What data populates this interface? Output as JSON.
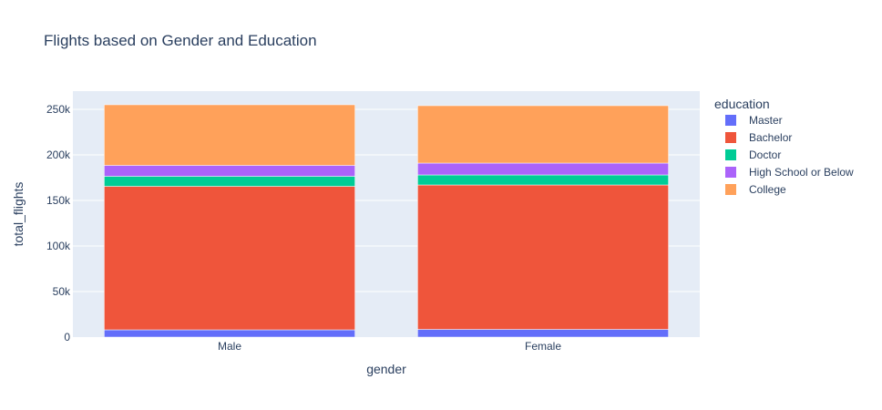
{
  "chart_data": {
    "type": "bar",
    "barmode": "stack",
    "title": "Flights based on Gender and Education",
    "xlabel": "gender",
    "ylabel": "total_flights",
    "categories": [
      "Male",
      "Female"
    ],
    "ylim": [
      0,
      270000
    ],
    "yticks": [
      {
        "value": 0,
        "label": "0"
      },
      {
        "value": 50000,
        "label": "50k"
      },
      {
        "value": 100000,
        "label": "100k"
      },
      {
        "value": 150000,
        "label": "150k"
      },
      {
        "value": 200000,
        "label": "200k"
      },
      {
        "value": 250000,
        "label": "250k"
      }
    ],
    "legend": {
      "title": "education",
      "position": "right"
    },
    "series": [
      {
        "name": "Master",
        "color": "#636efa",
        "values": [
          8000,
          8500
        ]
      },
      {
        "name": "Bachelor",
        "color": "#ef553b",
        "values": [
          157500,
          158500
        ]
      },
      {
        "name": "Doctor",
        "color": "#00cc96",
        "values": [
          11000,
          11000
        ]
      },
      {
        "name": "High School or Below",
        "color": "#ab63fa",
        "values": [
          12000,
          13000
        ]
      },
      {
        "name": "College",
        "color": "#ffa15a",
        "values": [
          66500,
          63000
        ]
      }
    ],
    "grid": true,
    "plot_bgcolor": "#e5ecf6"
  }
}
